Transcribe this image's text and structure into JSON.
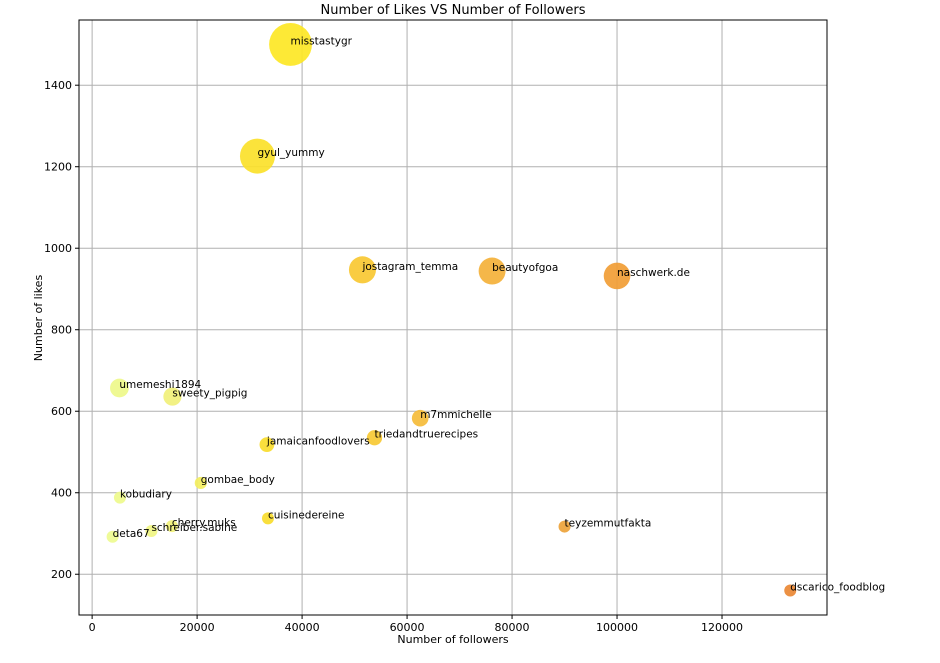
{
  "chart_data": {
    "type": "scatter",
    "title": "Number of Likes VS Number of Followers",
    "xlabel": "Number of followers",
    "ylabel": "Number of likes",
    "xlim": [
      -2500,
      140000
    ],
    "ylim": [
      100,
      1560
    ],
    "xticks": [
      0,
      20000,
      40000,
      60000,
      80000,
      100000,
      120000
    ],
    "yticks": [
      200,
      400,
      600,
      800,
      1000,
      1200,
      1400
    ],
    "grid": true,
    "colormap_note": "yellow (low followers) to orange (high followers)",
    "points": [
      {
        "label": "misstastygr",
        "x": 37800,
        "y": 1500,
        "color": "#fde725"
      },
      {
        "label": "gyul_yummy",
        "x": 31500,
        "y": 1226,
        "color": "#fbe12a"
      },
      {
        "label": "jostagram_temma",
        "x": 51500,
        "y": 947,
        "color": "#f8c832"
      },
      {
        "label": "beautyofgoa",
        "x": 76200,
        "y": 944,
        "color": "#f4b13a"
      },
      {
        "label": "naschwerk.de",
        "x": 100000,
        "y": 932,
        "color": "#f19d35"
      },
      {
        "label": "umemeshi1894",
        "x": 5200,
        "y": 657,
        "color": "#eef98a"
      },
      {
        "label": "sweety_pigpig",
        "x": 15300,
        "y": 636,
        "color": "#f1f07a"
      },
      {
        "label": "m7mmichelle",
        "x": 62500,
        "y": 583,
        "color": "#f5bc3a"
      },
      {
        "label": "triedandtruerecipes",
        "x": 53800,
        "y": 535,
        "color": "#f7c934"
      },
      {
        "label": "jamaicanfoodlovers",
        "x": 33300,
        "y": 518,
        "color": "#f9dc2d"
      },
      {
        "label": "gombae_body",
        "x": 20700,
        "y": 424,
        "color": "#f3ee5e"
      },
      {
        "label": "kobudiary",
        "x": 5300,
        "y": 388,
        "color": "#eefa8c"
      },
      {
        "label": "cuisinedereine",
        "x": 33500,
        "y": 337,
        "color": "#f9dc2d"
      },
      {
        "label": "cherry.muks",
        "x": 15200,
        "y": 318,
        "color": "#f2f27a"
      },
      {
        "label": "schreiber.sabine",
        "x": 11300,
        "y": 306,
        "color": "#f0f583"
      },
      {
        "label": "deta67",
        "x": 3900,
        "y": 292,
        "color": "#eefb90"
      },
      {
        "label": "teyzemmutfakta",
        "x": 90000,
        "y": 317,
        "color": "#eda33a"
      },
      {
        "label": "dscarico_foodblog",
        "x": 133000,
        "y": 160,
        "color": "#ea8834"
      }
    ]
  }
}
